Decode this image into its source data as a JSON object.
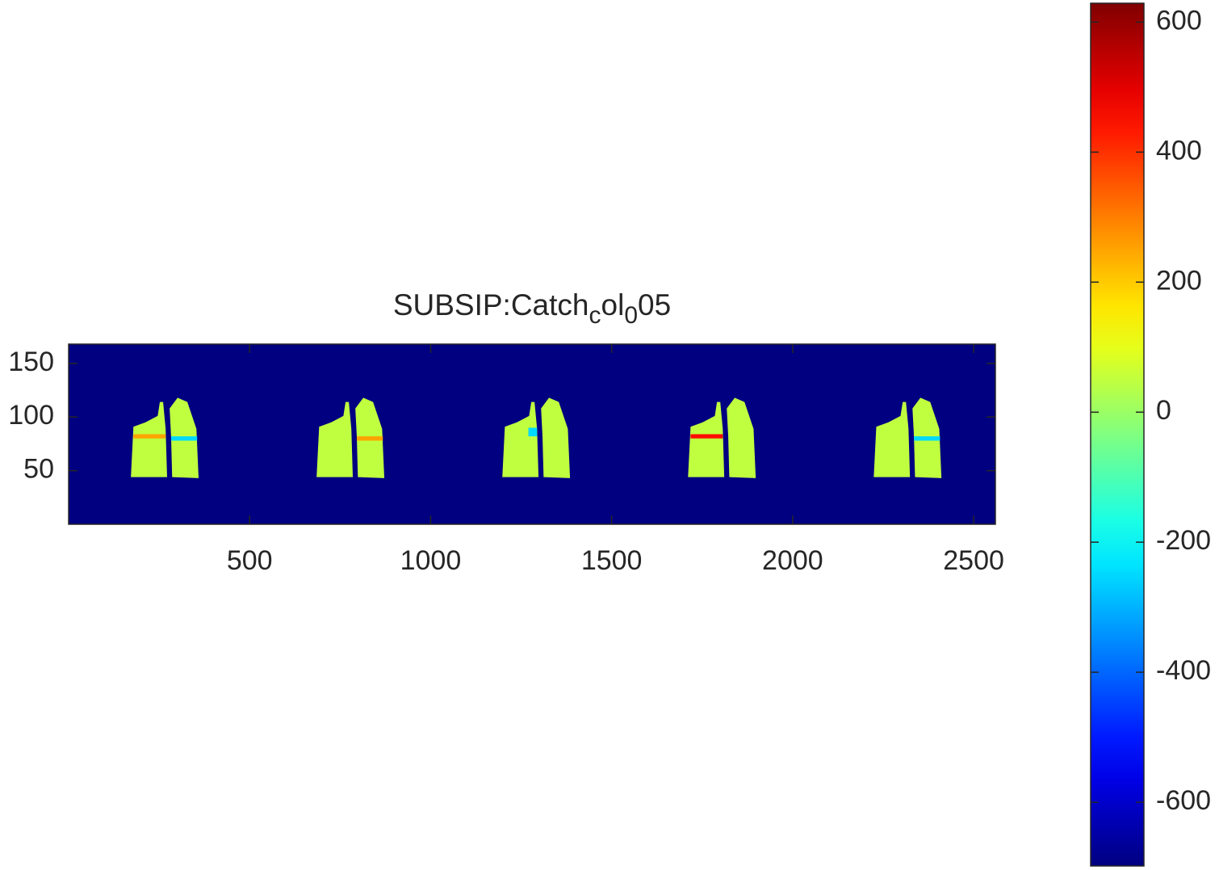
{
  "chart_data": {
    "type": "heatmap",
    "title_parts": [
      "SUBSIP:Catch",
      "c",
      "ol",
      "0",
      "05"
    ],
    "title_subscript": [
      false,
      true,
      false,
      true,
      false
    ],
    "colormap": "jet",
    "xlim": [
      0,
      2560
    ],
    "ylim": [
      0,
      168
    ],
    "xticks": [
      500,
      1000,
      1500,
      2000,
      2500
    ],
    "yticks": [
      50,
      100,
      150
    ],
    "clim": [
      -698,
      629
    ],
    "cticks": [
      -600,
      -400,
      -200,
      0,
      200,
      400,
      600
    ],
    "background_value": -698,
    "regions": [
      {
        "value": 50,
        "polygon": [
          [
            172,
            44
          ],
          [
            179,
            91
          ],
          [
            212,
            95
          ],
          [
            246,
            101
          ],
          [
            252,
            114
          ],
          [
            261,
            114
          ],
          [
            268,
            89
          ],
          [
            272,
            44
          ]
        ]
      },
      {
        "value": 50,
        "polygon": [
          [
            286,
            44
          ],
          [
            283,
            82
          ],
          [
            279,
            108
          ],
          [
            301,
            118
          ],
          [
            328,
            114
          ],
          [
            353,
            89
          ],
          [
            359,
            43
          ]
        ]
      },
      {
        "value": 250,
        "polygon": [
          [
            179,
            80
          ],
          [
            268,
            80
          ],
          [
            268,
            84
          ],
          [
            179,
            84
          ]
        ]
      },
      {
        "value": -250,
        "polygon": [
          [
            283,
            78
          ],
          [
            355,
            78
          ],
          [
            355,
            82
          ],
          [
            283,
            82
          ]
        ]
      },
      {
        "value": 50,
        "polygon": [
          [
            685,
            44
          ],
          [
            692,
            91
          ],
          [
            725,
            95
          ],
          [
            759,
            101
          ],
          [
            765,
            114
          ],
          [
            774,
            114
          ],
          [
            781,
            89
          ],
          [
            785,
            44
          ]
        ]
      },
      {
        "value": 50,
        "polygon": [
          [
            799,
            44
          ],
          [
            796,
            82
          ],
          [
            792,
            108
          ],
          [
            814,
            118
          ],
          [
            841,
            114
          ],
          [
            866,
            89
          ],
          [
            872,
            43
          ]
        ]
      },
      {
        "value": 250,
        "polygon": [
          [
            796,
            78
          ],
          [
            868,
            78
          ],
          [
            868,
            82
          ],
          [
            796,
            82
          ]
        ]
      },
      {
        "value": 50,
        "polygon": [
          [
            1198,
            44
          ],
          [
            1205,
            91
          ],
          [
            1238,
            95
          ],
          [
            1272,
            101
          ],
          [
            1278,
            114
          ],
          [
            1287,
            114
          ],
          [
            1294,
            89
          ],
          [
            1298,
            44
          ]
        ]
      },
      {
        "value": 50,
        "polygon": [
          [
            1312,
            44
          ],
          [
            1309,
            82
          ],
          [
            1305,
            108
          ],
          [
            1327,
            118
          ],
          [
            1354,
            114
          ],
          [
            1379,
            89
          ],
          [
            1385,
            43
          ]
        ]
      },
      {
        "value": -250,
        "polygon": [
          [
            1270,
            82
          ],
          [
            1294,
            82
          ],
          [
            1294,
            90
          ],
          [
            1270,
            90
          ]
        ]
      },
      {
        "value": 50,
        "polygon": [
          [
            1711,
            44
          ],
          [
            1718,
            91
          ],
          [
            1751,
            95
          ],
          [
            1785,
            101
          ],
          [
            1791,
            114
          ],
          [
            1800,
            114
          ],
          [
            1807,
            89
          ],
          [
            1811,
            44
          ]
        ]
      },
      {
        "value": 50,
        "polygon": [
          [
            1825,
            44
          ],
          [
            1822,
            82
          ],
          [
            1818,
            108
          ],
          [
            1840,
            118
          ],
          [
            1867,
            114
          ],
          [
            1892,
            89
          ],
          [
            1898,
            43
          ]
        ]
      },
      {
        "value": 450,
        "polygon": [
          [
            1718,
            80
          ],
          [
            1807,
            80
          ],
          [
            1807,
            84
          ],
          [
            1718,
            84
          ]
        ]
      },
      {
        "value": 50,
        "polygon": [
          [
            2224,
            44
          ],
          [
            2231,
            91
          ],
          [
            2264,
            95
          ],
          [
            2298,
            101
          ],
          [
            2304,
            114
          ],
          [
            2313,
            114
          ],
          [
            2320,
            89
          ],
          [
            2324,
            44
          ]
        ]
      },
      {
        "value": 50,
        "polygon": [
          [
            2338,
            44
          ],
          [
            2335,
            82
          ],
          [
            2331,
            108
          ],
          [
            2353,
            118
          ],
          [
            2380,
            114
          ],
          [
            2405,
            89
          ],
          [
            2411,
            43
          ]
        ]
      },
      {
        "value": -250,
        "polygon": [
          [
            2335,
            78
          ],
          [
            2407,
            78
          ],
          [
            2407,
            82
          ],
          [
            2335,
            82
          ]
        ]
      }
    ]
  }
}
